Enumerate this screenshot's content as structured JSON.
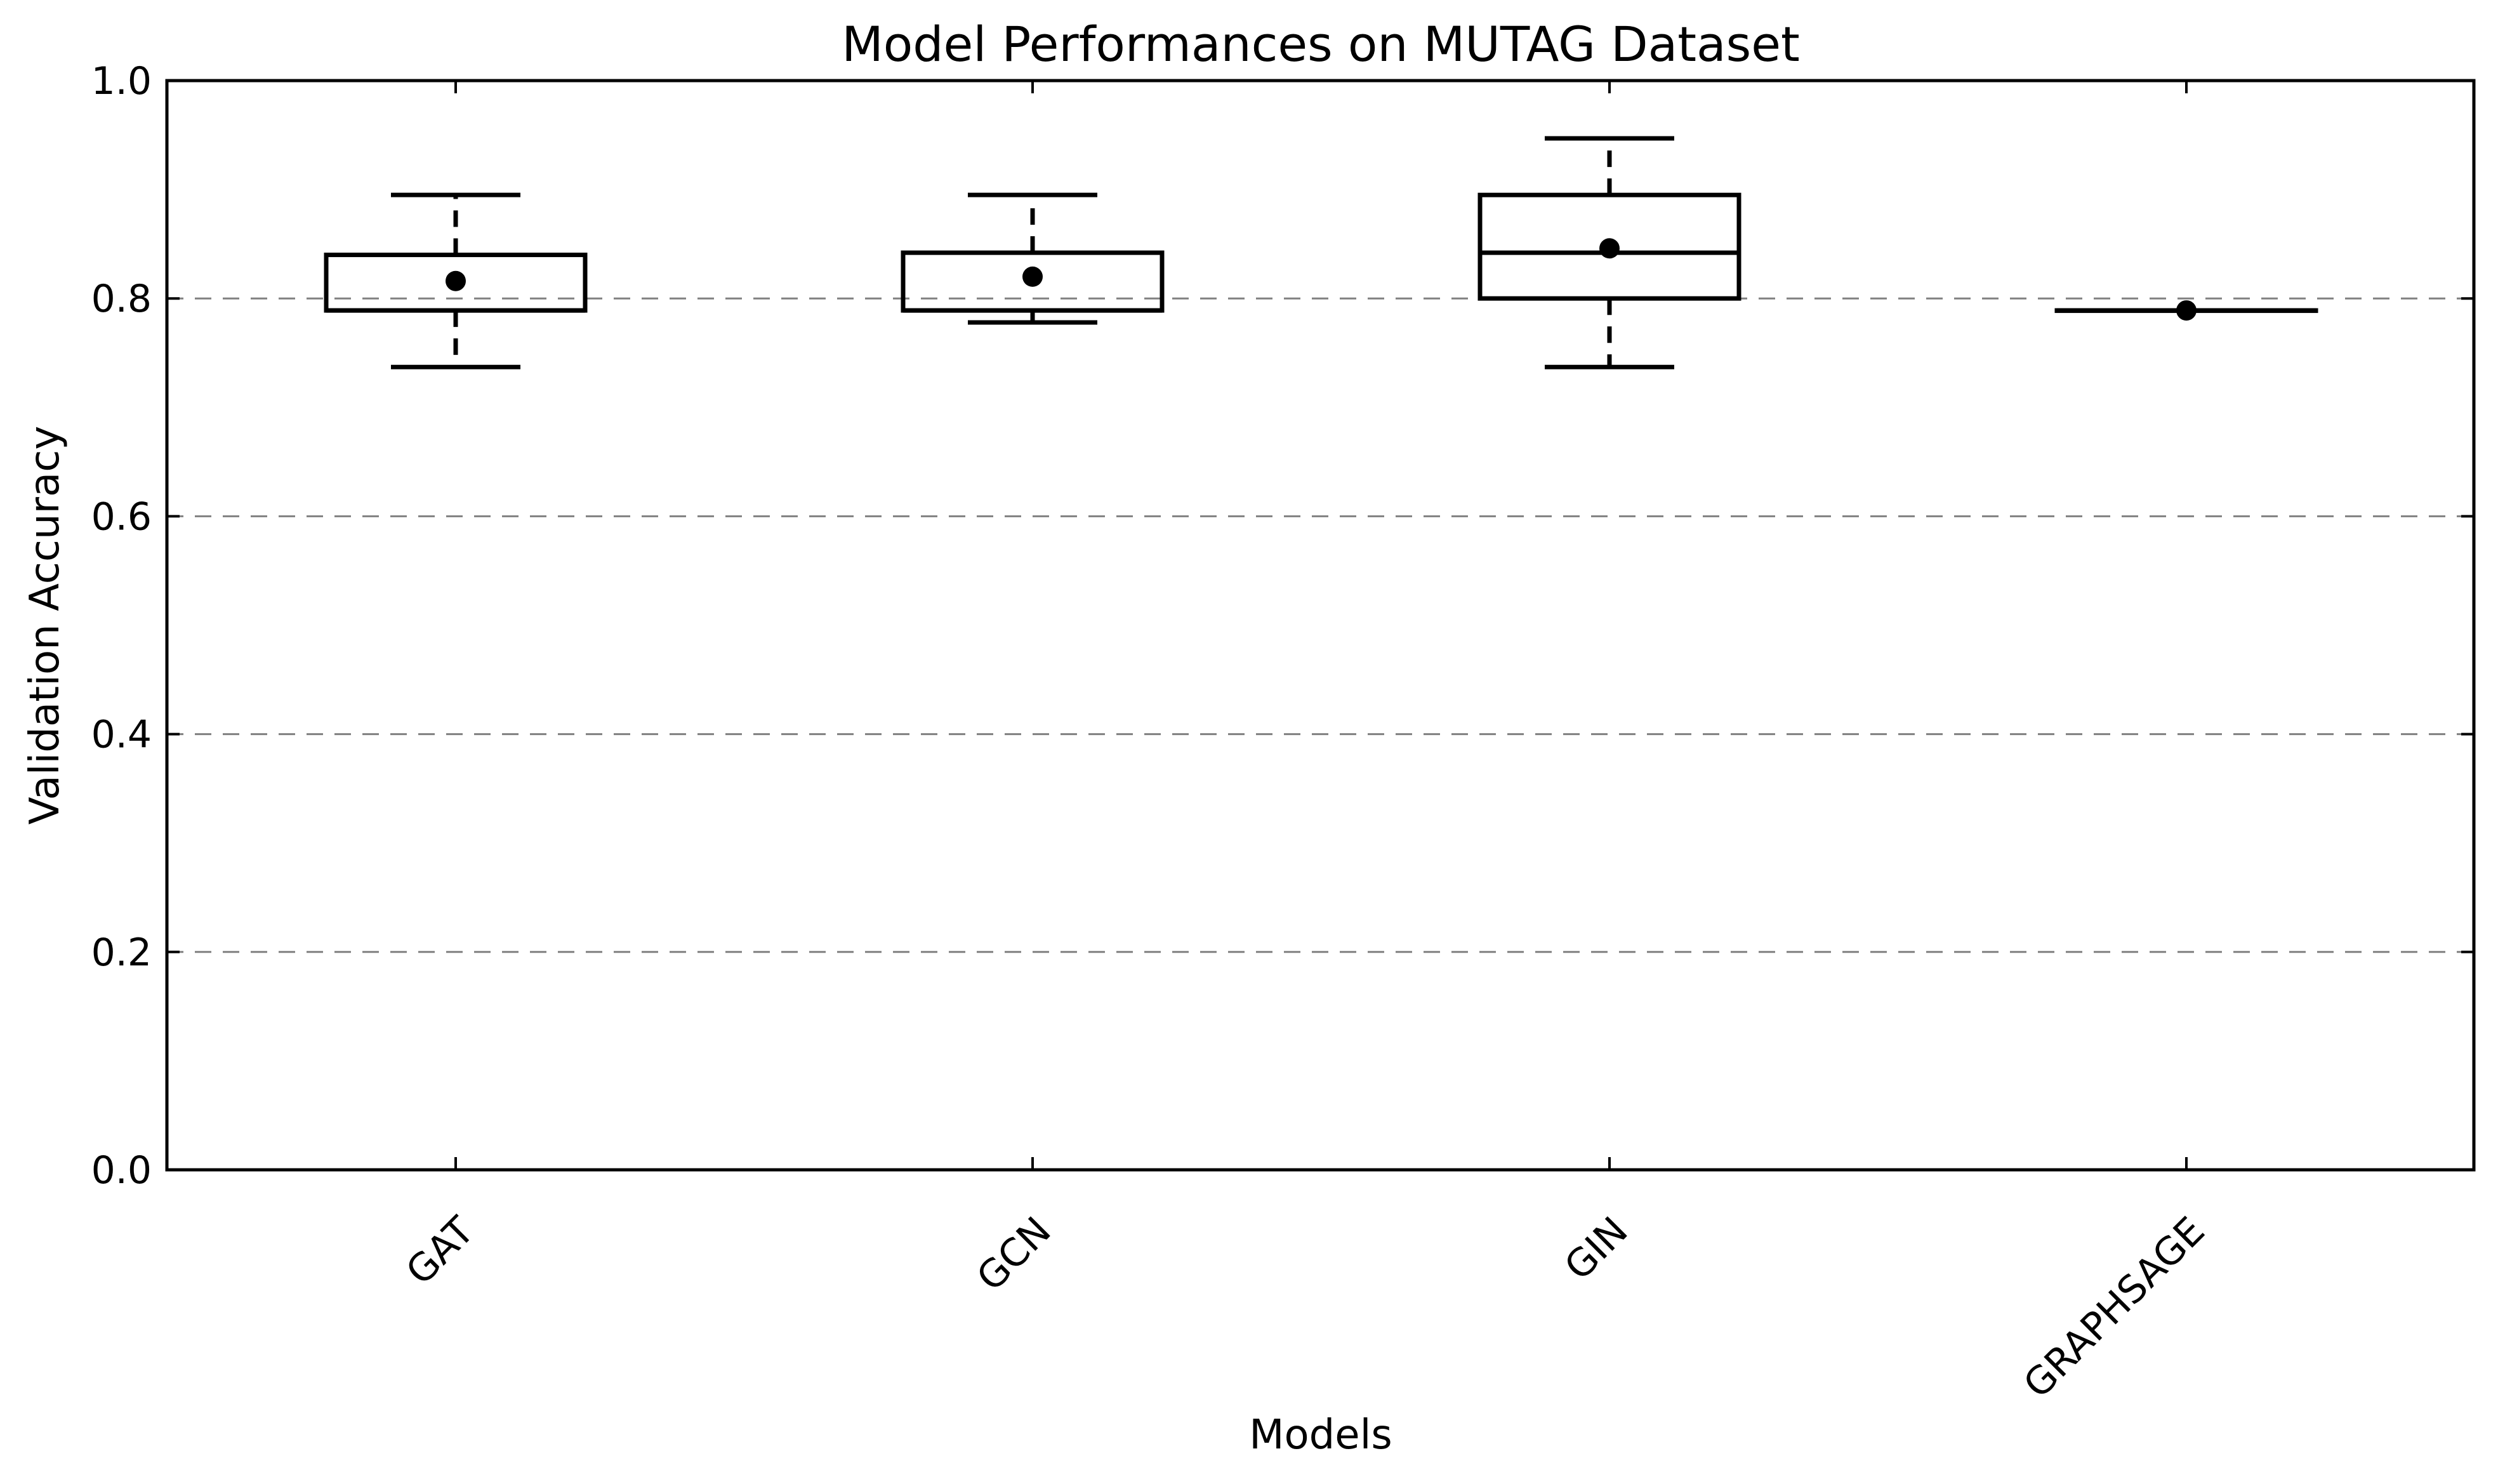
{
  "chart_data": {
    "type": "box",
    "title": "Model Performances on MUTAG Dataset",
    "xlabel": "Models",
    "ylabel": "Validation Accuracy",
    "ylim": [
      0.0,
      1.0
    ],
    "yticks": [
      "0.0",
      "0.2",
      "0.4",
      "0.6",
      "0.8",
      "1.0"
    ],
    "categories": [
      "GAT",
      "GCN",
      "GIN",
      "GRAPHSAGE"
    ],
    "grid": "horizontal dashed",
    "boxes": [
      {
        "category": "GAT",
        "whisker_low": 0.737,
        "q1": 0.789,
        "median": 0.789,
        "q3": 0.84,
        "whisker_high": 0.895,
        "mean": 0.816
      },
      {
        "category": "GCN",
        "whisker_low": 0.778,
        "q1": 0.789,
        "median": 0.789,
        "q3": 0.842,
        "whisker_high": 0.895,
        "mean": 0.82
      },
      {
        "category": "GIN",
        "whisker_low": 0.737,
        "q1": 0.8,
        "median": 0.842,
        "q3": 0.895,
        "whisker_high": 0.947,
        "mean": 0.846
      },
      {
        "category": "GRAPHSAGE",
        "whisker_low": 0.789,
        "q1": 0.789,
        "median": 0.789,
        "q3": 0.789,
        "whisker_high": 0.789,
        "mean": 0.789
      }
    ],
    "colors": {
      "box": "#000000",
      "grid": "#808080",
      "background": "#ffffff"
    }
  }
}
